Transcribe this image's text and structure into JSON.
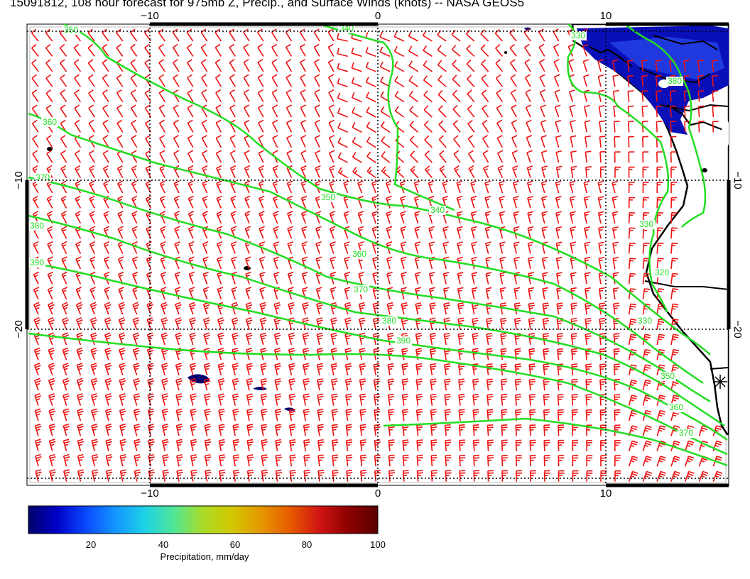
{
  "title": "15091812, 108 hour forecast for 975mb Z, Precip., and Surface Winds (knots) -- NASA GEOS5",
  "map": {
    "lon_ticks": [
      "−10",
      "0",
      "10"
    ],
    "lat_ticks": [
      "−10",
      "−20"
    ],
    "contour_color": "#22dd22",
    "wind_barb_color": "#ee1111",
    "land_outline_color": "#000000",
    "contour_labels": [
      "350",
      "340",
      "330",
      "360",
      "370",
      "380",
      "390",
      "350",
      "360",
      "370",
      "380",
      "390",
      "340",
      "330",
      "320",
      "330",
      "350",
      "360",
      "370",
      "380"
    ]
  },
  "colorbar": {
    "label": "Precipitation, mm/day",
    "tick_labels": [
      "20",
      "40",
      "60",
      "80",
      "100"
    ],
    "colors": [
      "#00006a",
      "#0000c8",
      "#0a4cff",
      "#1496ff",
      "#1ed2e6",
      "#50e696",
      "#aadc28",
      "#d2c800",
      "#e69600",
      "#e65a00",
      "#d21414",
      "#8c0000",
      "#5a0000"
    ]
  }
}
